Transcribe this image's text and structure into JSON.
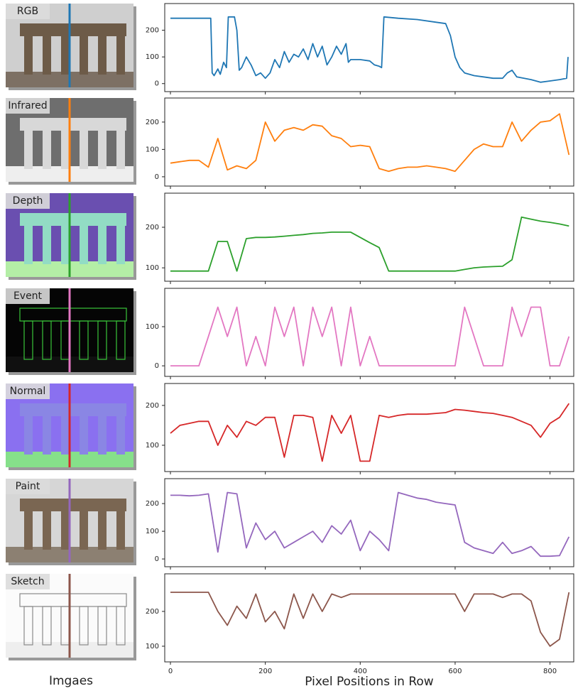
{
  "images_caption": "Imgaes",
  "chart_data": [
    {
      "type": "line",
      "image_label": "RGB",
      "color": "#1f77b4",
      "x": [
        0,
        50,
        85,
        88,
        92,
        100,
        105,
        112,
        118,
        122,
        135,
        140,
        145,
        150,
        160,
        170,
        180,
        190,
        200,
        210,
        220,
        230,
        240,
        250,
        260,
        270,
        280,
        290,
        300,
        310,
        320,
        330,
        340,
        350,
        360,
        370,
        375,
        380,
        400,
        420,
        430,
        440,
        445,
        450,
        480,
        520,
        560,
        580,
        590,
        600,
        610,
        620,
        640,
        660,
        680,
        700,
        710,
        720,
        730,
        760,
        780,
        800,
        820,
        835,
        838
      ],
      "values": [
        245,
        245,
        245,
        40,
        30,
        55,
        35,
        80,
        60,
        250,
        250,
        200,
        50,
        60,
        100,
        70,
        30,
        40,
        20,
        40,
        90,
        60,
        120,
        80,
        110,
        100,
        130,
        90,
        150,
        100,
        140,
        70,
        100,
        140,
        110,
        150,
        80,
        90,
        90,
        85,
        70,
        65,
        60,
        250,
        245,
        240,
        230,
        225,
        180,
        100,
        60,
        40,
        30,
        25,
        20,
        20,
        40,
        50,
        25,
        15,
        5,
        10,
        15,
        20,
        100
      ],
      "xlim": [
        -12,
        850
      ],
      "xticks": [
        0,
        200,
        400,
        600,
        800
      ],
      "ylim": [
        -30,
        300
      ],
      "yticks": [
        0,
        100,
        200
      ],
      "show_xtick_labels": false
    },
    {
      "type": "line",
      "image_label": "Infrared",
      "color": "#ff7f0e",
      "x": [
        0,
        20,
        40,
        60,
        80,
        100,
        120,
        140,
        160,
        180,
        200,
        220,
        240,
        260,
        280,
        300,
        320,
        340,
        360,
        380,
        400,
        420,
        440,
        460,
        480,
        500,
        520,
        540,
        560,
        580,
        600,
        620,
        640,
        660,
        680,
        700,
        720,
        740,
        760,
        780,
        800,
        820,
        840
      ],
      "values": [
        50,
        55,
        60,
        60,
        35,
        140,
        25,
        40,
        30,
        60,
        200,
        130,
        170,
        180,
        170,
        190,
        185,
        150,
        140,
        110,
        115,
        110,
        30,
        20,
        30,
        35,
        35,
        40,
        35,
        30,
        20,
        60,
        100,
        120,
        110,
        110,
        200,
        130,
        170,
        200,
        205,
        230,
        80
      ],
      "xlim": [
        -12,
        850
      ],
      "xticks": [
        0,
        200,
        400,
        600,
        800
      ],
      "ylim": [
        -34,
        288
      ],
      "yticks": [
        0,
        100,
        200
      ],
      "show_xtick_labels": false
    },
    {
      "type": "line",
      "image_label": "Depth",
      "color": "#2ca02c",
      "x": [
        0,
        20,
        40,
        60,
        80,
        100,
        120,
        140,
        160,
        180,
        200,
        220,
        240,
        260,
        280,
        300,
        320,
        340,
        360,
        380,
        400,
        420,
        440,
        460,
        480,
        500,
        520,
        540,
        560,
        580,
        600,
        620,
        640,
        660,
        680,
        700,
        720,
        740,
        760,
        780,
        800,
        820,
        840
      ],
      "values": [
        92,
        92,
        92,
        92,
        92,
        165,
        165,
        92,
        172,
        175,
        175,
        176,
        178,
        180,
        182,
        185,
        186,
        188,
        188,
        188,
        175,
        162,
        150,
        92,
        92,
        92,
        92,
        92,
        92,
        92,
        92,
        96,
        100,
        102,
        103,
        104,
        120,
        225,
        220,
        215,
        212,
        208,
        203
      ],
      "xlim": [
        -12,
        850
      ],
      "xticks": [
        0,
        200,
        400,
        600,
        800
      ],
      "ylim": [
        67,
        284
      ],
      "yticks": [
        100,
        200
      ],
      "show_xtick_labels": false
    },
    {
      "type": "line",
      "image_label": "Event",
      "color": "#e377c2",
      "x": [
        0,
        20,
        40,
        60,
        80,
        100,
        120,
        140,
        160,
        180,
        200,
        220,
        240,
        260,
        280,
        300,
        320,
        340,
        360,
        380,
        400,
        420,
        440,
        460,
        480,
        500,
        520,
        540,
        560,
        580,
        600,
        620,
        640,
        660,
        680,
        700,
        720,
        740,
        760,
        780,
        800,
        820,
        840
      ],
      "values": [
        0,
        0,
        0,
        0,
        75,
        150,
        75,
        150,
        0,
        75,
        0,
        150,
        75,
        150,
        0,
        150,
        75,
        150,
        0,
        150,
        0,
        75,
        0,
        0,
        0,
        0,
        0,
        0,
        0,
        0,
        0,
        150,
        75,
        0,
        0,
        0,
        150,
        75,
        150,
        150,
        0,
        0,
        75
      ],
      "xlim": [
        -12,
        850
      ],
      "xticks": [
        0,
        200,
        400,
        600,
        800
      ],
      "ylim": [
        -27,
        198
      ],
      "yticks": [
        0,
        100
      ],
      "show_xtick_labels": false
    },
    {
      "type": "line",
      "image_label": "Normal",
      "color": "#d62728",
      "x": [
        0,
        20,
        40,
        60,
        80,
        100,
        120,
        140,
        160,
        180,
        200,
        220,
        240,
        260,
        280,
        300,
        320,
        340,
        360,
        380,
        400,
        420,
        440,
        460,
        480,
        500,
        520,
        540,
        560,
        580,
        600,
        620,
        640,
        660,
        680,
        700,
        720,
        740,
        760,
        780,
        800,
        820,
        840
      ],
      "values": [
        130,
        150,
        155,
        160,
        160,
        100,
        150,
        120,
        160,
        150,
        170,
        170,
        70,
        175,
        175,
        170,
        60,
        175,
        130,
        175,
        60,
        60,
        175,
        170,
        175,
        178,
        178,
        178,
        180,
        182,
        190,
        188,
        185,
        182,
        180,
        175,
        170,
        160,
        150,
        120,
        155,
        170,
        205
      ],
      "xlim": [
        -12,
        850
      ],
      "xticks": [
        0,
        200,
        400,
        600,
        800
      ],
      "ylim": [
        34,
        255
      ],
      "yticks": [
        100,
        200
      ],
      "show_xtick_labels": false
    },
    {
      "type": "line",
      "image_label": "Paint",
      "color": "#9467bd",
      "x": [
        0,
        20,
        40,
        60,
        80,
        100,
        120,
        140,
        160,
        180,
        200,
        220,
        240,
        260,
        280,
        300,
        320,
        340,
        360,
        380,
        400,
        420,
        440,
        460,
        480,
        500,
        520,
        540,
        560,
        580,
        600,
        620,
        640,
        660,
        680,
        700,
        720,
        740,
        760,
        780,
        800,
        820,
        840
      ],
      "values": [
        230,
        230,
        228,
        230,
        235,
        25,
        240,
        235,
        40,
        130,
        70,
        100,
        40,
        60,
        80,
        100,
        60,
        120,
        90,
        140,
        30,
        100,
        70,
        30,
        240,
        230,
        220,
        215,
        205,
        200,
        195,
        60,
        40,
        30,
        20,
        60,
        20,
        30,
        45,
        10,
        10,
        12,
        80
      ],
      "xlim": [
        -12,
        850
      ],
      "xticks": [
        0,
        200,
        400,
        600,
        800
      ],
      "ylim": [
        -28,
        290
      ],
      "yticks": [
        0,
        100,
        200
      ],
      "show_xtick_labels": false
    },
    {
      "type": "line",
      "image_label": "Sketch",
      "color": "#8c564b",
      "x": [
        0,
        20,
        40,
        60,
        80,
        100,
        120,
        140,
        160,
        180,
        200,
        220,
        240,
        260,
        280,
        300,
        320,
        340,
        360,
        380,
        400,
        420,
        440,
        460,
        480,
        500,
        520,
        540,
        560,
        580,
        600,
        620,
        640,
        660,
        680,
        700,
        720,
        740,
        760,
        780,
        800,
        820,
        840
      ],
      "values": [
        255,
        255,
        255,
        255,
        255,
        200,
        160,
        215,
        180,
        250,
        170,
        200,
        150,
        250,
        180,
        250,
        200,
        250,
        240,
        250,
        250,
        250,
        250,
        250,
        250,
        250,
        250,
        250,
        250,
        250,
        250,
        200,
        250,
        250,
        250,
        240,
        250,
        250,
        230,
        140,
        100,
        120,
        255
      ],
      "xlim": [
        -12,
        850
      ],
      "xticks": [
        0,
        200,
        400,
        600,
        800
      ],
      "ylim": [
        55,
        308
      ],
      "yticks": [
        100,
        200
      ],
      "show_xtick_labels": true,
      "xlabel": "Pixel Positions in Row"
    }
  ]
}
